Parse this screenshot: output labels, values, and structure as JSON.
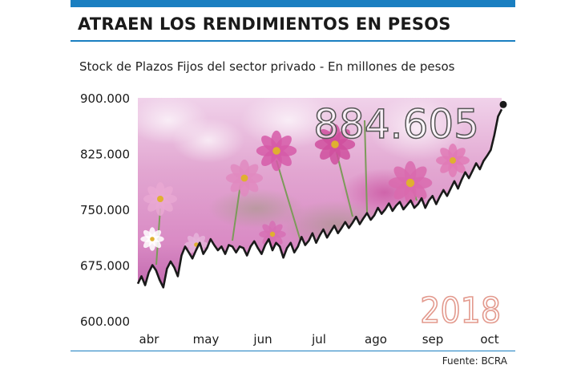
{
  "header": {
    "title": "ATRAEN LOS RENDIMIENTOS EN PESOS"
  },
  "footer": {
    "source": "Fuente: BCRA"
  },
  "colors": {
    "accent": "#1a7fc1",
    "line": "#1a1a1a",
    "year": "#e39a8e"
  },
  "chart_data": {
    "type": "line",
    "title": "",
    "subtitle": "Stock de Plazos Fijos del sector privado -  En millones de pesos",
    "xlabel": "",
    "ylabel": "",
    "ylim": [
      600000,
      900000
    ],
    "yticks": [
      "900.000",
      "825.000",
      "750.000",
      "675.000",
      "600.000"
    ],
    "ytick_values": [
      900000,
      825000,
      750000,
      675000,
      600000
    ],
    "xticks": [
      "abr",
      "may",
      "jun",
      "jul",
      "ago",
      "sep",
      "oct"
    ],
    "grid": false,
    "last_value_label": "884.605",
    "year_label": "2018",
    "series": [
      {
        "values": [
          650000,
          660000,
          648000,
          665000,
          675000,
          668000,
          655000,
          645000,
          670000,
          680000,
          672000,
          660000,
          688000,
          700000,
          692000,
          684000,
          695000,
          705000,
          690000,
          698000,
          710000,
          702000,
          695000,
          700000,
          690000,
          702000,
          700000,
          692000,
          700000,
          698000,
          688000,
          700000,
          707000,
          698000,
          690000,
          702000,
          710000,
          695000,
          705000,
          700000,
          685000,
          698000,
          705000,
          692000,
          700000,
          713000,
          702000,
          708000,
          718000,
          705000,
          715000,
          723000,
          712000,
          720000,
          728000,
          718000,
          725000,
          733000,
          725000,
          732000,
          740000,
          730000,
          738000,
          745000,
          736000,
          742000,
          752000,
          744000,
          750000,
          758000,
          748000,
          755000,
          760000,
          750000,
          756000,
          762000,
          752000,
          757000,
          765000,
          752000,
          762000,
          768000,
          757000,
          767000,
          776000,
          768000,
          778000,
          788000,
          778000,
          790000,
          800000,
          792000,
          802000,
          812000,
          804000,
          815000,
          822000,
          830000,
          850000,
          875000,
          884605
        ]
      }
    ]
  }
}
